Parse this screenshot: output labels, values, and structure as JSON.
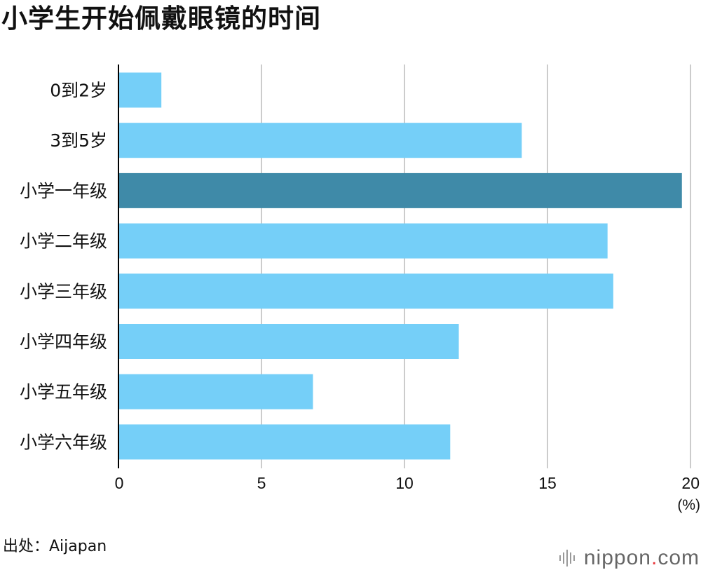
{
  "title": "小学生开始佩戴眼镜的时间",
  "source": "出处：Aijapan",
  "logo": {
    "name": "nippon",
    "dot": ".",
    "suffix": "com"
  },
  "colors": {
    "bar": "#75cff8",
    "highlight": "#3f8aa8",
    "grid": "#cccccc",
    "axis": "#000000"
  },
  "chart_data": {
    "type": "bar",
    "orientation": "horizontal",
    "title": "小学生开始佩戴眼镜的时间",
    "categories": [
      "0到2岁",
      "3到5岁",
      "小学一年级",
      "小学二年级",
      "小学三年级",
      "小学四年级",
      "小学五年级",
      "小学六年级"
    ],
    "values": [
      1.5,
      14.1,
      19.7,
      17.1,
      17.3,
      11.9,
      6.8,
      11.6
    ],
    "highlight_index": 2,
    "xlim": [
      0,
      20
    ],
    "xticks": [
      "0",
      "5",
      "10",
      "15",
      "20"
    ],
    "xticks_values": [
      0,
      5,
      10,
      15,
      20
    ],
    "unit": "(%)",
    "grid": true
  }
}
